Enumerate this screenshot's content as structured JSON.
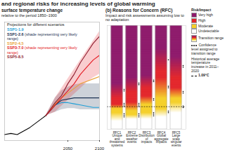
{
  "title": "and regional risks for increasing levels of global warming",
  "chart_data": [
    {
      "type": "line",
      "title": "surface temperature change",
      "subtitle": "relative to the period 1850–1900",
      "legend_title": "Projections for different scenarios",
      "legend": "upper left",
      "tick_labels": "x",
      "x": [
        1950,
        1960,
        1970,
        1980,
        1990,
        2000,
        2010,
        2015,
        2030,
        2040,
        2050,
        2060,
        2070,
        2080,
        2090,
        2100
      ],
      "xlim": [
        1950,
        2100
      ],
      "xticks": [
        2050,
        2100
      ],
      "ylim": [
        0,
        5
      ],
      "series": [
        {
          "color": "#000000",
          "values": [
            0.25,
            0.3,
            0.25,
            0.4,
            0.55,
            0.75,
            0.95,
            1.05,
            null,
            null,
            null,
            null,
            null,
            null,
            null,
            null
          ]
        },
        {
          "name": "SSP1-1.9",
          "color": "#1e9fd7",
          "values": [
            null,
            null,
            null,
            null,
            null,
            null,
            null,
            1.05,
            1.5,
            1.6,
            1.6,
            1.55,
            1.5,
            1.45,
            1.4,
            1.4
          ]
        },
        {
          "name": "SSP1-2.6",
          "legend_note": "(shade representing very likely range)",
          "color": "#1d3354",
          "values": [
            null,
            null,
            null,
            null,
            null,
            null,
            null,
            1.05,
            1.5,
            1.7,
            1.75,
            1.8,
            1.8,
            1.8,
            1.8,
            1.8
          ],
          "low": [
            null,
            null,
            null,
            null,
            null,
            null,
            null,
            1.05,
            1.2,
            1.3,
            1.35,
            1.35,
            1.3,
            1.3,
            1.3,
            1.3
          ],
          "high": [
            null,
            null,
            null,
            null,
            null,
            null,
            null,
            1.05,
            1.8,
            2.1,
            2.25,
            2.35,
            2.4,
            2.4,
            2.4,
            2.4
          ]
        },
        {
          "name": "SSP2-4.5",
          "color": "#e9a33b",
          "values": [
            null,
            null,
            null,
            null,
            null,
            null,
            null,
            1.05,
            1.55,
            1.8,
            2.0,
            2.2,
            2.4,
            2.5,
            2.6,
            2.7
          ]
        },
        {
          "name": "SSP3-7.0",
          "legend_note": "(shade representing very likely range)",
          "color": "#e41b23",
          "values": [
            null,
            null,
            null,
            null,
            null,
            null,
            null,
            1.05,
            1.5,
            1.8,
            2.1,
            2.4,
            2.8,
            3.1,
            3.4,
            3.6
          ],
          "low": [
            null,
            null,
            null,
            null,
            null,
            null,
            null,
            1.05,
            1.2,
            1.45,
            1.7,
            1.95,
            2.2,
            2.45,
            2.65,
            2.8
          ],
          "high": [
            null,
            null,
            null,
            null,
            null,
            null,
            null,
            1.05,
            1.8,
            2.2,
            2.6,
            3.0,
            3.4,
            3.8,
            4.2,
            4.6
          ]
        },
        {
          "name": "SSP5-8.5",
          "color": "#8f1d2f",
          "values": [
            null,
            null,
            null,
            null,
            null,
            null,
            null,
            1.05,
            1.6,
            1.9,
            2.4,
            2.8,
            3.3,
            3.7,
            4.1,
            4.4
          ]
        }
      ]
    },
    {
      "type": "bar",
      "title": "(b) Reasons for Concern (RFC)",
      "subtitle": "Impact and risk assessments assuming low to no adaptation",
      "legend": "right",
      "tick_labels": false,
      "categories": [
        "RFC1",
        "RFC2",
        "RFC3",
        "RFC4",
        "RFC5"
      ],
      "category_names": [
        "Unique and threatened systems",
        "Extreme weather events",
        "Distribution of impacts",
        "Global aggregate impacts",
        "Large scale singular events"
      ],
      "ylim": [
        0,
        5
      ],
      "legend_title": "Risk/Impact",
      "levels": [
        {
          "name": "Undetectable",
          "color": "#ffffff"
        },
        {
          "name": "Moderate",
          "color": "#f5d02a"
        },
        {
          "name": "High",
          "color": "#e3262b"
        },
        {
          "name": "Very high",
          "color": "#8e1a6b"
        }
      ],
      "transition_label": "Transition range",
      "confidence_label": "Confidence level assigned to transition range",
      "transitions": [
        [
          {
            "from": 0.4,
            "to": 0.8,
            "confidence": 3
          },
          {
            "from": 1.0,
            "to": 1.2,
            "confidence": 3
          },
          {
            "from": 1.5,
            "to": 2.2,
            "confidence": 2
          }
        ],
        [
          {
            "from": 0.5,
            "to": 0.7,
            "confidence": 3
          },
          {
            "from": 0.9,
            "to": 1.3,
            "confidence": 3
          },
          {
            "from": 1.8,
            "to": 2.5,
            "confidence": 2
          }
        ],
        [
          {
            "from": 0.5,
            "to": 0.8,
            "confidence": 3
          },
          {
            "from": 1.2,
            "to": 1.6,
            "confidence": 2
          },
          {
            "from": 2.0,
            "to": 2.6,
            "confidence": 2
          }
        ],
        [
          {
            "from": 0.6,
            "to": 1.0,
            "confidence": 2
          },
          {
            "from": 1.5,
            "to": 2.5,
            "confidence": 2
          },
          {
            "from": 2.8,
            "to": 3.9,
            "confidence": 1
          }
        ],
        [
          {
            "from": 0.8,
            "to": 1.3,
            "confidence": 2
          },
          {
            "from": 1.5,
            "to": 2.0,
            "confidence": 2
          },
          {
            "from": 2.5,
            "to": 3.5,
            "confidence": 2
          }
        ]
      ],
      "historical": {
        "label": "Historical average temperature increase in 2011–2020",
        "value": 1.09,
        "value_label": "1.09°C"
      }
    }
  ]
}
